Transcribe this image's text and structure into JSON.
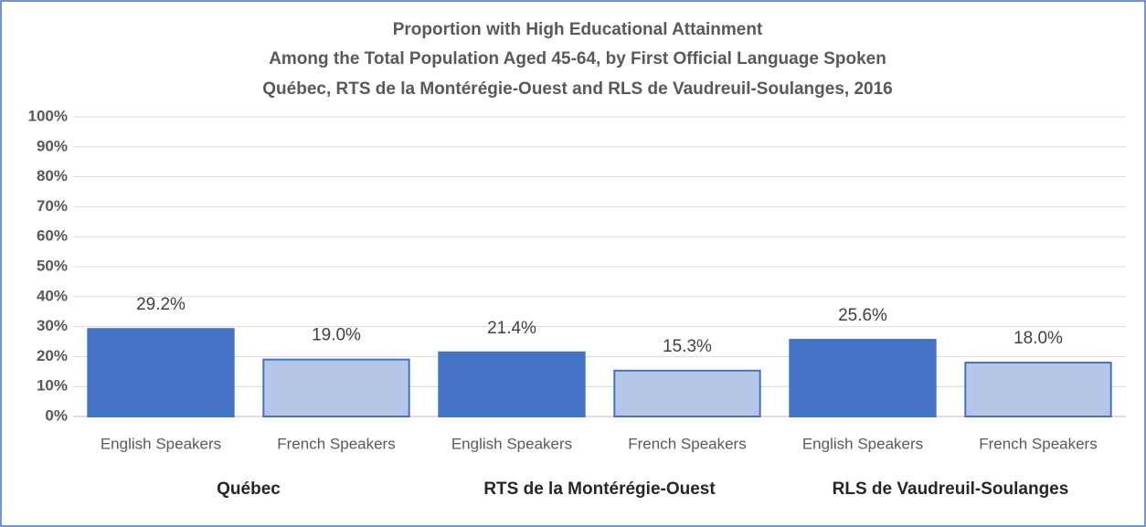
{
  "chart_data": {
    "type": "bar",
    "title": [
      "Proportion with High Educational Attainment",
      "Among the Total Population Aged 45-64, by First Official Language Spoken",
      "Québec, RTS de la Montérégie-Ouest and RLS de Vaudreuil-Soulanges,  2016"
    ],
    "categories": [
      "Québec",
      "RTS de la Montérégie-Ouest",
      "RLS de Vaudreuil-Soulanges"
    ],
    "series": [
      {
        "name": "English Speakers",
        "color": "#4472c4",
        "values": [
          29.2,
          21.4,
          25.6
        ],
        "value_labels": [
          "29.2%",
          "21.4%",
          "25.6%"
        ]
      },
      {
        "name": "French Speakers",
        "color": "#b4c7e7",
        "values": [
          19.0,
          15.3,
          18.0
        ],
        "value_labels": [
          "19.0%",
          "15.3%",
          "18.0%"
        ]
      }
    ],
    "ylim": [
      0,
      100
    ],
    "yticks": [
      {
        "value": 0,
        "label": "0%"
      },
      {
        "value": 10,
        "label": "10%"
      },
      {
        "value": 20,
        "label": "20%"
      },
      {
        "value": 30,
        "label": "30%"
      },
      {
        "value": 40,
        "label": "40%"
      },
      {
        "value": 50,
        "label": "50%"
      },
      {
        "value": 60,
        "label": "60%"
      },
      {
        "value": 70,
        "label": "70%"
      },
      {
        "value": 80,
        "label": "80%"
      },
      {
        "value": 90,
        "label": "90%"
      },
      {
        "value": 100,
        "label": "100%"
      }
    ],
    "grid": true
  }
}
